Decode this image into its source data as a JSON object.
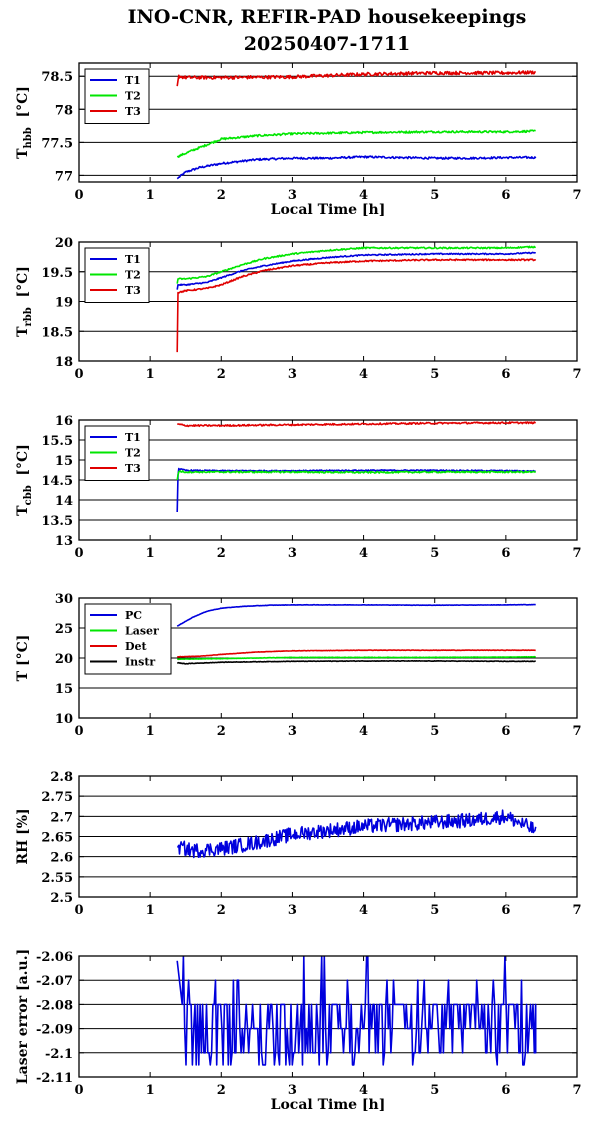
{
  "title": {
    "line1": "INO-CNR, REFIR-PAD housekeepings",
    "line2": "20250407-1711"
  },
  "colors": {
    "blue": "#0000dd",
    "green": "#00e600",
    "red": "#e00000",
    "black": "#000000"
  },
  "chart_data": [
    {
      "type": "line",
      "ylabel": {
        "main": "T",
        "sub": "hbb",
        "unit": "[°C]"
      },
      "xlabel": "Local Time [h]",
      "xlim": [
        0,
        7
      ],
      "ylim": [
        76.9,
        78.7
      ],
      "xticks": [
        "0",
        "1",
        "2",
        "3",
        "4",
        "5",
        "6",
        "7"
      ],
      "yticks": [
        {
          "value": 77,
          "label": "77"
        },
        {
          "value": 77.5,
          "label": "77.5"
        },
        {
          "value": 78,
          "label": "78"
        },
        {
          "value": 78.5,
          "label": "78.5"
        }
      ],
      "grid": true,
      "legend_position": "top-left",
      "series": [
        {
          "name": "T1",
          "color": "blue",
          "x": [
            1.38,
            1.5,
            1.7,
            2.0,
            2.5,
            3.0,
            3.5,
            4.0,
            4.5,
            5.0,
            5.5,
            6.0,
            6.42
          ],
          "y": [
            76.95,
            77.05,
            77.12,
            77.18,
            77.24,
            77.26,
            77.26,
            77.28,
            77.27,
            77.26,
            77.26,
            77.27,
            77.27
          ],
          "noise": 0.015
        },
        {
          "name": "T2",
          "color": "green",
          "x": [
            1.38,
            1.6,
            2.0,
            2.5,
            3.0,
            4.0,
            5.0,
            6.0,
            6.42
          ],
          "y": [
            77.28,
            77.38,
            77.55,
            77.6,
            77.63,
            77.65,
            77.66,
            77.66,
            77.67
          ],
          "noise": 0.015
        },
        {
          "name": "T3",
          "color": "red",
          "x": [
            1.38,
            1.4,
            1.5,
            2.0,
            3.0,
            4.0,
            5.0,
            6.0,
            6.42
          ],
          "y": [
            78.35,
            78.5,
            78.48,
            78.48,
            78.49,
            78.53,
            78.55,
            78.55,
            78.56
          ],
          "noise": 0.025
        }
      ]
    },
    {
      "type": "line",
      "ylabel": {
        "main": "T",
        "sub": "rbb",
        "unit": "[°C]"
      },
      "xlabel": "",
      "xlim": [
        0,
        7
      ],
      "ylim": [
        18,
        20
      ],
      "xticks": [
        "0",
        "1",
        "2",
        "3",
        "4",
        "5",
        "6",
        "7"
      ],
      "yticks": [
        {
          "value": 18,
          "label": "18"
        },
        {
          "value": 18.5,
          "label": "18.5"
        },
        {
          "value": 19,
          "label": "19"
        },
        {
          "value": 19.5,
          "label": "19.5"
        },
        {
          "value": 20,
          "label": "20"
        }
      ],
      "grid": true,
      "legend_position": "top-left",
      "series": [
        {
          "name": "T1",
          "color": "blue",
          "x": [
            1.38,
            1.39,
            1.5,
            1.8,
            2.0,
            2.3,
            2.6,
            3.0,
            3.5,
            4.0,
            5.0,
            6.0,
            6.42
          ],
          "y": [
            19.2,
            19.28,
            19.28,
            19.32,
            19.4,
            19.52,
            19.6,
            19.68,
            19.74,
            19.78,
            19.8,
            19.8,
            19.82
          ],
          "noise": 0.01
        },
        {
          "name": "T2",
          "color": "green",
          "x": [
            1.38,
            1.39,
            1.5,
            1.8,
            2.0,
            2.3,
            2.6,
            3.0,
            3.5,
            4.0,
            5.0,
            6.0,
            6.42
          ],
          "y": [
            19.3,
            19.38,
            19.38,
            19.42,
            19.5,
            19.62,
            19.72,
            19.8,
            19.86,
            19.9,
            19.9,
            19.9,
            19.92
          ],
          "noise": 0.012
        },
        {
          "name": "T3",
          "color": "red",
          "x": [
            1.38,
            1.385,
            1.39,
            1.5,
            1.8,
            2.0,
            2.3,
            2.6,
            3.0,
            3.5,
            4.0,
            5.0,
            6.0,
            6.42
          ],
          "y": [
            18.15,
            18.9,
            19.15,
            19.18,
            19.22,
            19.28,
            19.42,
            19.52,
            19.6,
            19.65,
            19.68,
            19.7,
            19.7,
            19.7
          ],
          "noise": 0.012
        }
      ]
    },
    {
      "type": "line",
      "ylabel": {
        "main": "T",
        "sub": "cbb",
        "unit": "[°C]"
      },
      "xlabel": "",
      "xlim": [
        0,
        7
      ],
      "ylim": [
        13,
        16
      ],
      "xticks": [
        "0",
        "1",
        "2",
        "3",
        "4",
        "5",
        "6",
        "7"
      ],
      "yticks": [
        {
          "value": 13,
          "label": "13"
        },
        {
          "value": 13.5,
          "label": "13.5"
        },
        {
          "value": 14,
          "label": "14"
        },
        {
          "value": 14.5,
          "label": "14.5"
        },
        {
          "value": 15,
          "label": "15"
        },
        {
          "value": 15.5,
          "label": "15.5"
        },
        {
          "value": 16,
          "label": "16"
        }
      ],
      "grid": true,
      "legend_position": "top-left",
      "series": [
        {
          "name": "T1",
          "color": "blue",
          "x": [
            1.38,
            1.385,
            1.4,
            1.5,
            2.0,
            3.0,
            4.0,
            5.0,
            6.0,
            6.42
          ],
          "y": [
            13.7,
            14.5,
            14.78,
            14.74,
            14.73,
            14.73,
            14.74,
            14.74,
            14.73,
            14.72
          ],
          "noise": 0.015
        },
        {
          "name": "T2",
          "color": "green",
          "x": [
            1.38,
            1.4,
            1.5,
            2.0,
            3.0,
            4.0,
            5.0,
            6.0,
            6.42
          ],
          "y": [
            14.5,
            14.72,
            14.7,
            14.7,
            14.7,
            14.69,
            14.7,
            14.7,
            14.7
          ],
          "noise": 0.02
        },
        {
          "name": "T3",
          "color": "red",
          "x": [
            1.38,
            1.5,
            2.0,
            3.0,
            4.0,
            5.0,
            6.0,
            6.42
          ],
          "y": [
            15.9,
            15.86,
            15.86,
            15.88,
            15.9,
            15.92,
            15.93,
            15.93
          ],
          "noise": 0.02
        }
      ]
    },
    {
      "type": "line",
      "ylabel": {
        "main": "T [°C]",
        "sub": "",
        "unit": ""
      },
      "xlabel": "",
      "xlim": [
        0,
        7
      ],
      "ylim": [
        10,
        30
      ],
      "xticks": [
        "0",
        "1",
        "2",
        "3",
        "4",
        "5",
        "6",
        "7"
      ],
      "yticks": [
        {
          "value": 10,
          "label": "10"
        },
        {
          "value": 15,
          "label": "15"
        },
        {
          "value": 20,
          "label": "20"
        },
        {
          "value": 25,
          "label": "25"
        },
        {
          "value": 30,
          "label": "30"
        }
      ],
      "grid": true,
      "legend_position": "top-left",
      "series": [
        {
          "name": "PC",
          "color": "blue",
          "x": [
            1.38,
            1.6,
            1.8,
            2.0,
            2.3,
            2.7,
            3.0,
            4.0,
            5.0,
            6.0,
            6.42
          ],
          "y": [
            25.3,
            26.8,
            27.8,
            28.3,
            28.6,
            28.8,
            28.85,
            28.85,
            28.8,
            28.85,
            28.9
          ],
          "noise": 0.03
        },
        {
          "name": "Laser",
          "color": "green",
          "x": [
            1.38,
            2.0,
            3.0,
            4.0,
            5.0,
            6.0,
            6.42
          ],
          "y": [
            19.8,
            19.9,
            20.1,
            20.1,
            20.1,
            20.15,
            20.2
          ],
          "noise": 0.03
        },
        {
          "name": "Det",
          "color": "red",
          "x": [
            1.38,
            1.7,
            2.0,
            2.5,
            3.0,
            4.0,
            5.0,
            6.0,
            6.42
          ],
          "y": [
            20.2,
            20.3,
            20.6,
            21.0,
            21.2,
            21.3,
            21.3,
            21.3,
            21.3
          ],
          "noise": 0.03
        },
        {
          "name": "Instr",
          "color": "black",
          "x": [
            1.38,
            1.5,
            2.0,
            3.0,
            4.0,
            5.0,
            6.0,
            6.42
          ],
          "y": [
            19.2,
            19.05,
            19.3,
            19.45,
            19.5,
            19.5,
            19.45,
            19.45
          ],
          "noise": 0.04
        }
      ]
    },
    {
      "type": "line",
      "ylabel": {
        "main": "RH [%]",
        "sub": "",
        "unit": ""
      },
      "xlabel": "",
      "xlim": [
        0,
        7
      ],
      "ylim": [
        2.5,
        2.8
      ],
      "xticks": [
        "0",
        "1",
        "2",
        "3",
        "4",
        "5",
        "6",
        "7"
      ],
      "yticks": [
        {
          "value": 2.5,
          "label": "2.5"
        },
        {
          "value": 2.55,
          "label": "2.55"
        },
        {
          "value": 2.6,
          "label": "2.6"
        },
        {
          "value": 2.65,
          "label": "2.65"
        },
        {
          "value": 2.7,
          "label": "2.7"
        },
        {
          "value": 2.75,
          "label": "2.75"
        },
        {
          "value": 2.8,
          "label": "2.8"
        }
      ],
      "grid": true,
      "legend_position": "none",
      "series": [
        {
          "name": "",
          "color": "blue",
          "x": [
            1.38,
            1.6,
            2.0,
            2.5,
            3.0,
            3.5,
            4.0,
            4.5,
            5.0,
            5.5,
            6.0,
            6.42
          ],
          "y": [
            2.625,
            2.615,
            2.62,
            2.635,
            2.655,
            2.665,
            2.675,
            2.68,
            2.685,
            2.69,
            2.7,
            2.665
          ],
          "noise": 0.018
        }
      ]
    },
    {
      "type": "line",
      "ylabel": {
        "main": "Laser error [a.u.]",
        "sub": "",
        "unit": ""
      },
      "xlabel": "Local Time [h]",
      "xlim": [
        0,
        7
      ],
      "ylim": [
        -2.11,
        -2.06
      ],
      "xticks": [
        "0",
        "1",
        "2",
        "3",
        "4",
        "5",
        "6",
        "7"
      ],
      "yticks": [
        {
          "value": -2.11,
          "label": "-2.11"
        },
        {
          "value": -2.1,
          "label": "-2.1"
        },
        {
          "value": -2.09,
          "label": "-2.09"
        },
        {
          "value": -2.08,
          "label": "-2.08"
        },
        {
          "value": -2.07,
          "label": "-2.07"
        },
        {
          "value": -2.06,
          "label": "-2.06"
        }
      ],
      "grid": true,
      "legend_position": "none",
      "series": [
        {
          "name": "",
          "color": "blue",
          "x": [
            1.38,
            1.45,
            6.42
          ],
          "y": [
            -2.062,
            -2.08,
            -2.08
          ],
          "levels": [
            -2.06,
            -2.07,
            -2.08,
            -2.09,
            -2.1,
            -2.105
          ],
          "noise": 0
        }
      ]
    }
  ]
}
